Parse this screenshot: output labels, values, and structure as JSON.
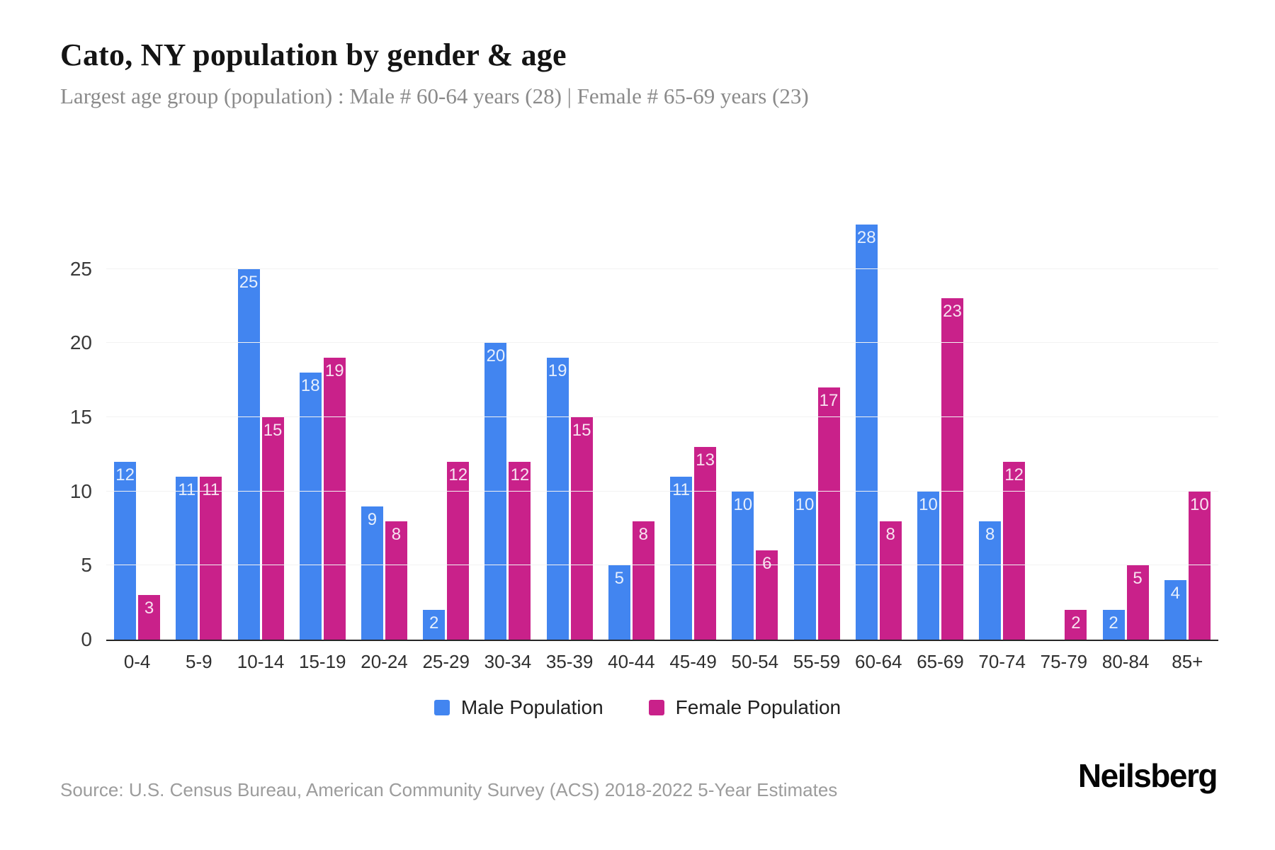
{
  "header": {
    "title": "Cato, NY population by gender & age",
    "subtitle": "Largest age group (population) : Male # 60-64 years (28) | Female # 65-69 years (23)"
  },
  "chart_data": {
    "type": "bar",
    "title": "Cato, NY population by gender & age",
    "categories": [
      "0-4",
      "5-9",
      "10-14",
      "15-19",
      "20-24",
      "25-29",
      "30-34",
      "35-39",
      "40-44",
      "45-49",
      "50-54",
      "55-59",
      "60-64",
      "65-69",
      "70-74",
      "75-79",
      "80-84",
      "85+"
    ],
    "series": [
      {
        "name": "Male Population",
        "color": "#4285f0",
        "values": [
          12,
          11,
          25,
          18,
          9,
          2,
          20,
          19,
          5,
          11,
          10,
          10,
          28,
          10,
          8,
          0,
          2,
          4
        ]
      },
      {
        "name": "Female Population",
        "color": "#c9218a",
        "values": [
          3,
          11,
          15,
          19,
          8,
          12,
          12,
          15,
          8,
          13,
          6,
          17,
          8,
          23,
          12,
          2,
          5,
          10
        ]
      }
    ],
    "xlabel": "",
    "ylabel": "",
    "yticks": [
      0,
      5,
      10,
      15,
      20,
      25
    ],
    "ylim": [
      0,
      31
    ],
    "grid": true,
    "legend_position": "bottom",
    "bar_value_labels": true
  },
  "footer": {
    "source": "Source: U.S. Census Bureau, American Community Survey (ACS) 2018-2022 5-Year Estimates",
    "brand": "Neilsberg"
  }
}
